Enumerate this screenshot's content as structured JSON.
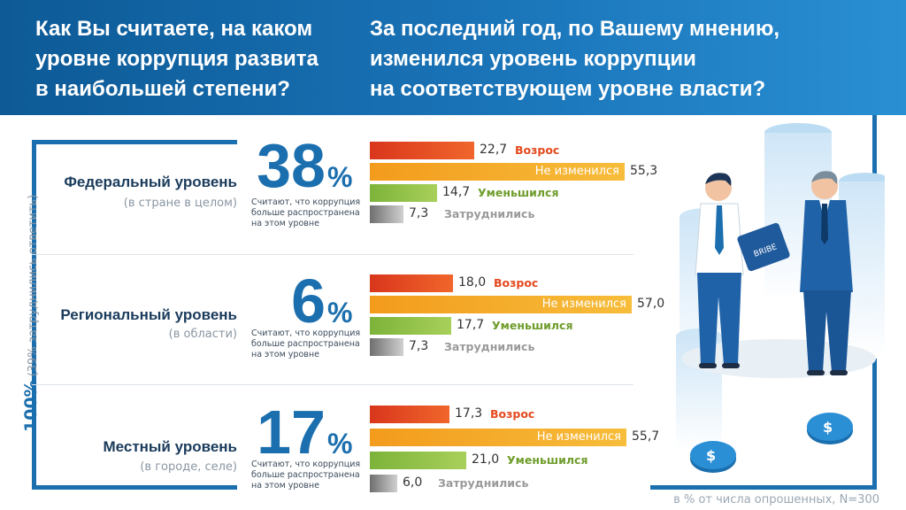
{
  "header": {
    "question_left": "Как Вы считаете, на каком\nуровне коррупция развита\nв наибольшей степени?",
    "question_right": "За последний год, по Вашему мнению,\nизменился уровень коррупции\nна соответствующем уровне власти?"
  },
  "side": {
    "total": "100%",
    "note": "(39% затруднились ответить)"
  },
  "footnote": "в % от числа опрошенных, N=300",
  "colors": {
    "increase": "#e4491d",
    "unchanged": "#f5a823",
    "decreased": "#8dc043",
    "hard": "#9a9a9a",
    "primary": "#1b6fae"
  },
  "chart_data": {
    "type": "bar",
    "title": "За последний год, по Вашему мнению, изменился уровень коррупции на соответствующем уровне власти?",
    "categories": [
      "Возрос",
      "Не изменился",
      "Уменьшился",
      "Затруднились"
    ],
    "xlim": [
      0,
      60
    ],
    "unit": "%",
    "groups": [
      {
        "name": "Федеральный уровень",
        "sub": "(в стране в целом)",
        "pct": "38",
        "pct_sign": "%",
        "pct_desc": "Считают, что коррупция\nбольше распространена\nна этом уровне",
        "values": [
          22.7,
          55.3,
          14.7,
          7.3
        ],
        "value_labels": [
          "22,7",
          "55,3",
          "14,7",
          "7,3"
        ]
      },
      {
        "name": "Региональный уровень",
        "sub": "(в области)",
        "pct": "6",
        "pct_sign": "%",
        "pct_desc": "Считают, что коррупция\nбольше распространена\nна этом уровне",
        "values": [
          18.0,
          57.0,
          17.7,
          7.3
        ],
        "value_labels": [
          "18,0",
          "57,0",
          "17,7",
          "7,3"
        ]
      },
      {
        "name": "Местный уровень",
        "sub": "(в городе, селе)",
        "pct": "17",
        "pct_sign": "%",
        "pct_desc": "Считают, что коррупция\nбольше распространена\nна этом уровне",
        "values": [
          17.3,
          55.7,
          21.0,
          6.0
        ],
        "value_labels": [
          "17,3",
          "55,7",
          "21,0",
          "6,0"
        ]
      }
    ]
  }
}
